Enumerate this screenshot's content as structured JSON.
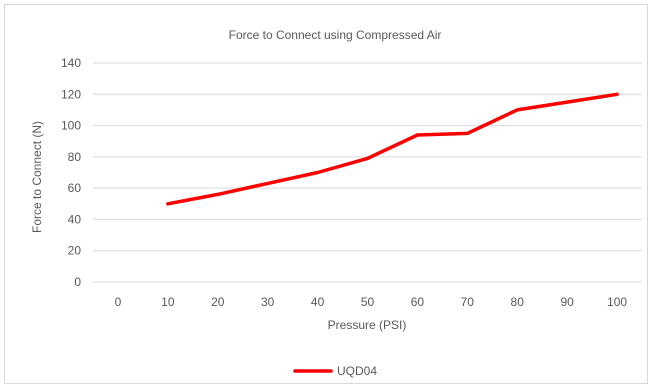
{
  "chart_data": {
    "type": "line",
    "title": "Force to Connect using Compressed Air",
    "xlabel": "Pressure (PSI)",
    "ylabel": "Force to Connect (N)",
    "x_categories": [
      "0",
      "10",
      "20",
      "30",
      "40",
      "50",
      "60",
      "70",
      "80",
      "90",
      "100"
    ],
    "ylim": [
      0,
      140
    ],
    "yticks": [
      "0",
      "20",
      "40",
      "60",
      "80",
      "100",
      "120",
      "140"
    ],
    "grid": true,
    "legend_position": "bottom",
    "series": [
      {
        "name": "UQD04",
        "color": "#ff0000",
        "x": [
          10,
          20,
          30,
          40,
          50,
          60,
          70,
          80,
          90,
          100
        ],
        "y": [
          50,
          56,
          63,
          70,
          79,
          94,
          95,
          110,
          115,
          120
        ]
      }
    ]
  }
}
